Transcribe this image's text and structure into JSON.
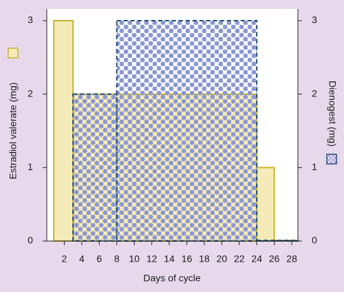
{
  "chart_data": {
    "type": "step-bar",
    "x_label": "Days of cycle",
    "y_label": "Estradiol valerate (mg)",
    "y2_label": "Dienogest (mg)",
    "xlim": [
      0,
      28.7
    ],
    "xticks": [
      2,
      4,
      6,
      8,
      10,
      12,
      14,
      16,
      18,
      20,
      22,
      24,
      26,
      28
    ],
    "ylim": [
      0,
      3
    ],
    "yticks": [
      0,
      1,
      2,
      3
    ],
    "y2lim": [
      0,
      3
    ],
    "y2ticks": [
      0,
      1,
      2,
      3
    ],
    "series": [
      {
        "name": "Estradiol valerate",
        "color": "#f4ebb8",
        "edge": "#c9b330",
        "bins": [
          0.8,
          3,
          24,
          26,
          28.7
        ],
        "values": [
          3,
          2,
          1,
          0
        ]
      },
      {
        "name": "Dienogest",
        "color": "#8d98d2",
        "edge": "#1f4e7a",
        "axis": "y2",
        "bins": [
          3,
          8,
          24,
          28.7
        ],
        "values": [
          2,
          3,
          0
        ]
      }
    ]
  }
}
